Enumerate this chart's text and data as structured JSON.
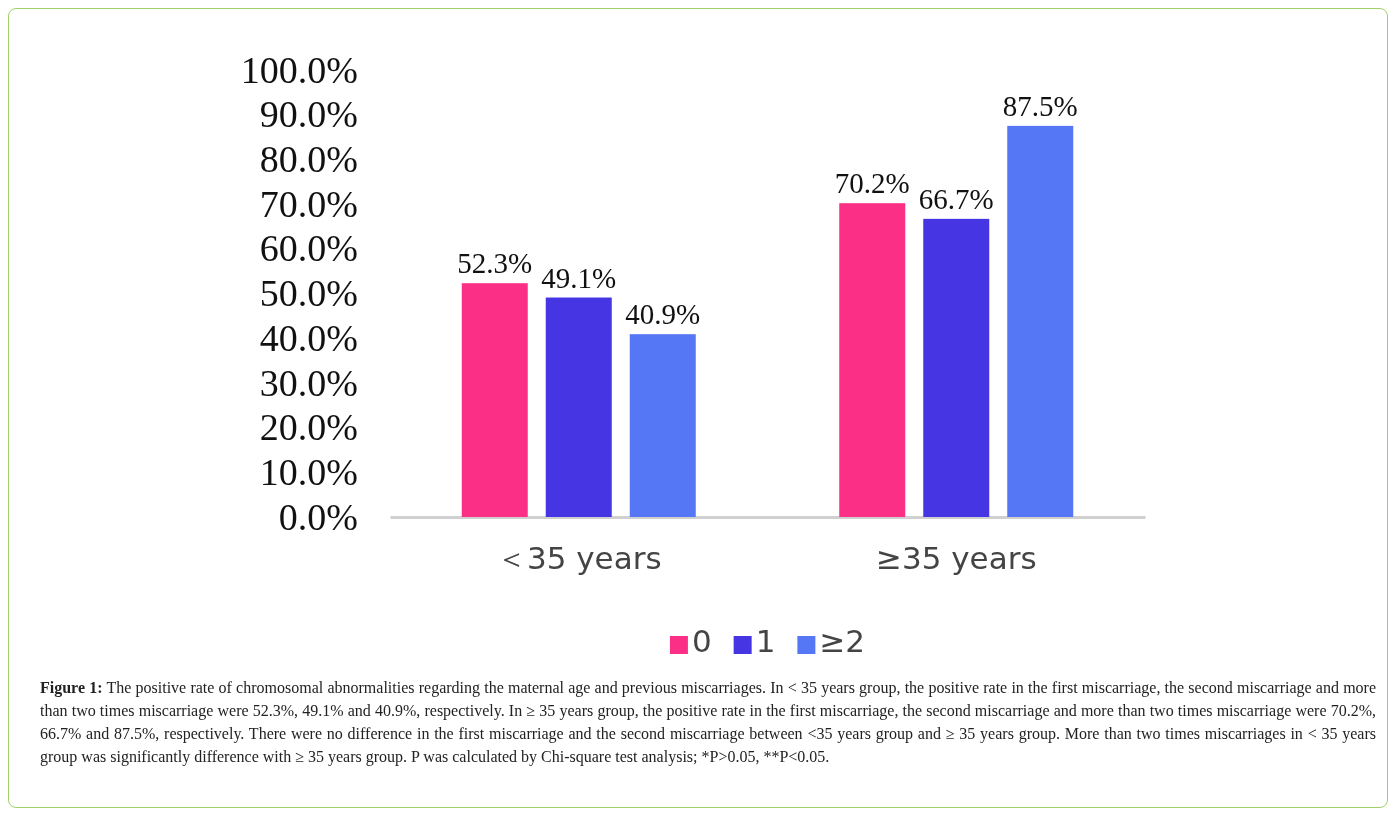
{
  "chart_data": {
    "type": "bar",
    "categories": [
      "＜35 years",
      "≥35 years"
    ],
    "series": [
      {
        "name": "0",
        "color": "#fb2f86",
        "values": [
          52.3,
          70.2
        ],
        "value_labels": [
          "52.3%",
          "70.2%"
        ]
      },
      {
        "name": "1",
        "color": "#4535e2",
        "values": [
          49.1,
          66.7
        ],
        "value_labels": [
          "49.1%",
          "66.7%"
        ]
      },
      {
        "name": "≥2",
        "color": "#5677f5",
        "values": [
          40.9,
          87.5
        ],
        "value_labels": [
          "40.9%",
          "87.5%"
        ]
      }
    ],
    "ylim": [
      0,
      100
    ],
    "yticks": [
      {
        "value": 0,
        "label": "0.0%"
      },
      {
        "value": 10,
        "label": "10.0%"
      },
      {
        "value": 20,
        "label": "20.0%"
      },
      {
        "value": 30,
        "label": "30.0%"
      },
      {
        "value": 40,
        "label": "40.0%"
      },
      {
        "value": 50,
        "label": "50.0%"
      },
      {
        "value": 60,
        "label": "60.0%"
      },
      {
        "value": 70,
        "label": "70.0%"
      },
      {
        "value": 80,
        "label": "80.0%"
      },
      {
        "value": 90,
        "label": "90.0%"
      },
      {
        "value": 100,
        "label": "100.0%"
      }
    ],
    "grid": false,
    "legend": "bottom",
    "annotations": [
      "Figure 1: The positive rate of chromosomal abnormalities regarding the maternal age and previous miscarriages. In < 35 years group, the positive rate in the first miscarriage, the second miscarriage and more than two times miscarriage were 52.3%, 49.1% and 40.9%, respectively. In ≥ 35 years group, the positive rate in the first miscarriage, the second miscarriage and more than two times miscarriage were 70.2%, 66.7% and 87.5%, respectively. There were no difference in the first miscarriage and the second miscarriage between <35 years group and ≥ 35 years group. More than two times miscarriages in < 35 years group was significantly difference with ≥ 35 years group. P was calculated by Chi-square test analysis; *P>0.05, **P<0.05."
    ]
  }
}
